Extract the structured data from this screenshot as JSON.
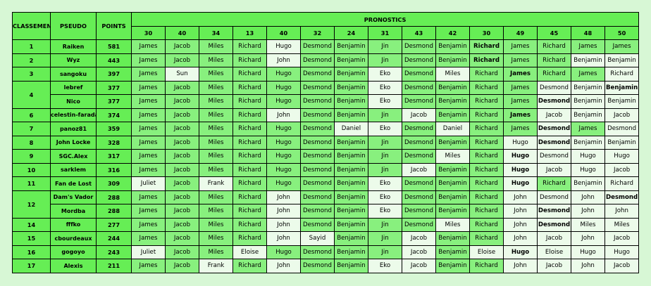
{
  "headers": {
    "rank": "CLASSEMENT",
    "pseudo": "PSEUDO",
    "points": "POINTS",
    "pronostics": "PRONOSTICS"
  },
  "question_numbers": [
    "30",
    "40",
    "34",
    "13",
    "40",
    "32",
    "24",
    "31",
    "43",
    "42",
    "30",
    "49",
    "45",
    "48",
    "50"
  ],
  "rows": [
    {
      "rank": "1",
      "pseudo": "Raiken",
      "points": "581",
      "picks": [
        {
          "v": "James",
          "c": 0
        },
        {
          "v": "Jacob",
          "c": 0
        },
        {
          "v": "Miles",
          "c": 0
        },
        {
          "v": "Richard",
          "c": 0
        },
        {
          "v": "Hugo",
          "c": 1
        },
        {
          "v": "Desmond",
          "c": 0
        },
        {
          "v": "Benjamin",
          "c": 0
        },
        {
          "v": "Jin",
          "c": 0
        },
        {
          "v": "Desmond",
          "c": 0
        },
        {
          "v": "Benjamin",
          "c": 0
        },
        {
          "v": "Richard",
          "c": 0,
          "b": true
        },
        {
          "v": "James",
          "c": 0
        },
        {
          "v": "Richard",
          "c": 0
        },
        {
          "v": "James",
          "c": 0
        },
        {
          "v": "James",
          "c": 0
        }
      ]
    },
    {
      "rank": "2",
      "pseudo": "Wyz",
      "points": "443",
      "picks": [
        {
          "v": "James",
          "c": 0
        },
        {
          "v": "Jacob",
          "c": 0
        },
        {
          "v": "Miles",
          "c": 0
        },
        {
          "v": "Richard",
          "c": 0
        },
        {
          "v": "John",
          "c": 1
        },
        {
          "v": "Desmond",
          "c": 0
        },
        {
          "v": "Benjamin",
          "c": 0
        },
        {
          "v": "Jin",
          "c": 0
        },
        {
          "v": "Desmond",
          "c": 0
        },
        {
          "v": "Benjamin",
          "c": 0
        },
        {
          "v": "Richard",
          "c": 0,
          "b": true
        },
        {
          "v": "James",
          "c": 0
        },
        {
          "v": "Richard",
          "c": 0
        },
        {
          "v": "Benjamin",
          "c": 1
        },
        {
          "v": "Benjamin",
          "c": 1
        }
      ]
    },
    {
      "rank": "3",
      "pseudo": "sangoku",
      "points": "397",
      "picks": [
        {
          "v": "James",
          "c": 0
        },
        {
          "v": "Sun",
          "c": 1
        },
        {
          "v": "Miles",
          "c": 0
        },
        {
          "v": "Richard",
          "c": 0
        },
        {
          "v": "Hugo",
          "c": 0
        },
        {
          "v": "Desmond",
          "c": 0
        },
        {
          "v": "Benjamin",
          "c": 0
        },
        {
          "v": "Eko",
          "c": 1
        },
        {
          "v": "Desmond",
          "c": 0
        },
        {
          "v": "Miles",
          "c": 1
        },
        {
          "v": "Richard",
          "c": 0
        },
        {
          "v": "James",
          "c": 0,
          "b": true
        },
        {
          "v": "Richard",
          "c": 0
        },
        {
          "v": "James",
          "c": 0
        },
        {
          "v": "Richard",
          "c": 1
        }
      ]
    },
    {
      "rank": "4",
      "pseudo": "lebref",
      "points": "377",
      "picks": [
        {
          "v": "James",
          "c": 0
        },
        {
          "v": "Jacob",
          "c": 0
        },
        {
          "v": "Miles",
          "c": 0
        },
        {
          "v": "Richard",
          "c": 0
        },
        {
          "v": "Hugo",
          "c": 0
        },
        {
          "v": "Desmond",
          "c": 0
        },
        {
          "v": "Benjamin",
          "c": 0
        },
        {
          "v": "Eko",
          "c": 1
        },
        {
          "v": "Desmond",
          "c": 0
        },
        {
          "v": "Benjamin",
          "c": 0
        },
        {
          "v": "Richard",
          "c": 0
        },
        {
          "v": "James",
          "c": 0
        },
        {
          "v": "Desmond",
          "c": 1
        },
        {
          "v": "Benjamin",
          "c": 1
        },
        {
          "v": "Benjamin",
          "c": 1,
          "b": true
        }
      ]
    },
    {
      "rank": "",
      "pseudo": "Nico",
      "points": "377",
      "picks": [
        {
          "v": "James",
          "c": 0
        },
        {
          "v": "Jacob",
          "c": 0
        },
        {
          "v": "Miles",
          "c": 0
        },
        {
          "v": "Richard",
          "c": 0
        },
        {
          "v": "Hugo",
          "c": 0
        },
        {
          "v": "Desmond",
          "c": 0
        },
        {
          "v": "Benjamin",
          "c": 0
        },
        {
          "v": "Eko",
          "c": 1
        },
        {
          "v": "Desmond",
          "c": 0
        },
        {
          "v": "Benjamin",
          "c": 0
        },
        {
          "v": "Richard",
          "c": 0
        },
        {
          "v": "James",
          "c": 0
        },
        {
          "v": "Desmond",
          "c": 1,
          "b": true
        },
        {
          "v": "Benjamin",
          "c": 1
        },
        {
          "v": "Benjamin",
          "c": 1
        }
      ]
    },
    {
      "rank": "6",
      "pseudo": "celestin-faraday",
      "points": "374",
      "picks": [
        {
          "v": "James",
          "c": 0
        },
        {
          "v": "Jacob",
          "c": 0
        },
        {
          "v": "Miles",
          "c": 0
        },
        {
          "v": "Richard",
          "c": 0
        },
        {
          "v": "John",
          "c": 1
        },
        {
          "v": "Desmond",
          "c": 0
        },
        {
          "v": "Benjamin",
          "c": 0
        },
        {
          "v": "Jin",
          "c": 0
        },
        {
          "v": "Jacob",
          "c": 1
        },
        {
          "v": "Benjamin",
          "c": 0
        },
        {
          "v": "Richard",
          "c": 0
        },
        {
          "v": "James",
          "c": 0,
          "b": true
        },
        {
          "v": "Jacob",
          "c": 1
        },
        {
          "v": "Benjamin",
          "c": 1
        },
        {
          "v": "Jacob",
          "c": 1
        }
      ]
    },
    {
      "rank": "7",
      "pseudo": "panoz81",
      "points": "359",
      "picks": [
        {
          "v": "James",
          "c": 0
        },
        {
          "v": "Jacob",
          "c": 0
        },
        {
          "v": "Miles",
          "c": 0
        },
        {
          "v": "Richard",
          "c": 0
        },
        {
          "v": "Hugo",
          "c": 0
        },
        {
          "v": "Desmond",
          "c": 0
        },
        {
          "v": "Daniel",
          "c": 1
        },
        {
          "v": "Eko",
          "c": 1
        },
        {
          "v": "Desmond",
          "c": 0
        },
        {
          "v": "Daniel",
          "c": 1
        },
        {
          "v": "Richard",
          "c": 0
        },
        {
          "v": "James",
          "c": 0
        },
        {
          "v": "Desmond",
          "c": 1,
          "b": true
        },
        {
          "v": "James",
          "c": 0
        },
        {
          "v": "Desmond",
          "c": 1
        }
      ]
    },
    {
      "rank": "8",
      "pseudo": "John Locke",
      "points": "328",
      "picks": [
        {
          "v": "James",
          "c": 0
        },
        {
          "v": "Jacob",
          "c": 0
        },
        {
          "v": "Miles",
          "c": 0
        },
        {
          "v": "Richard",
          "c": 0
        },
        {
          "v": "Hugo",
          "c": 0
        },
        {
          "v": "Desmond",
          "c": 0
        },
        {
          "v": "Benjamin",
          "c": 0
        },
        {
          "v": "Jin",
          "c": 0
        },
        {
          "v": "Desmond",
          "c": 0
        },
        {
          "v": "Benjamin",
          "c": 0
        },
        {
          "v": "Richard",
          "c": 0
        },
        {
          "v": "Hugo",
          "c": 1
        },
        {
          "v": "Desmond",
          "c": 1,
          "b": true
        },
        {
          "v": "Benjamin",
          "c": 1
        },
        {
          "v": "Benjamin",
          "c": 1
        }
      ]
    },
    {
      "rank": "9",
      "pseudo": "SGC.Alex",
      "points": "317",
      "picks": [
        {
          "v": "James",
          "c": 0
        },
        {
          "v": "Jacob",
          "c": 0
        },
        {
          "v": "Miles",
          "c": 0
        },
        {
          "v": "Richard",
          "c": 0
        },
        {
          "v": "Hugo",
          "c": 0
        },
        {
          "v": "Desmond",
          "c": 0
        },
        {
          "v": "Benjamin",
          "c": 0
        },
        {
          "v": "Jin",
          "c": 0
        },
        {
          "v": "Desmond",
          "c": 0
        },
        {
          "v": "Miles",
          "c": 1
        },
        {
          "v": "Richard",
          "c": 0
        },
        {
          "v": "Hugo",
          "c": 1,
          "b": true
        },
        {
          "v": "Desmond",
          "c": 1
        },
        {
          "v": "Hugo",
          "c": 1
        },
        {
          "v": "Hugo",
          "c": 1
        }
      ]
    },
    {
      "rank": "10",
      "pseudo": "sarklem",
      "points": "316",
      "picks": [
        {
          "v": "James",
          "c": 0
        },
        {
          "v": "Jacob",
          "c": 0
        },
        {
          "v": "Miles",
          "c": 0
        },
        {
          "v": "Richard",
          "c": 0
        },
        {
          "v": "Hugo",
          "c": 0
        },
        {
          "v": "Desmond",
          "c": 0
        },
        {
          "v": "Benjamin",
          "c": 0
        },
        {
          "v": "Jin",
          "c": 0
        },
        {
          "v": "Jacob",
          "c": 1
        },
        {
          "v": "Benjamin",
          "c": 0
        },
        {
          "v": "Richard",
          "c": 0
        },
        {
          "v": "Hugo",
          "c": 1,
          "b": true
        },
        {
          "v": "Jacob",
          "c": 1
        },
        {
          "v": "Hugo",
          "c": 1
        },
        {
          "v": "Jacob",
          "c": 1
        }
      ]
    },
    {
      "rank": "11",
      "pseudo": "Fan de Lost",
      "points": "309",
      "picks": [
        {
          "v": "Juliet",
          "c": 1
        },
        {
          "v": "Jacob",
          "c": 0
        },
        {
          "v": "Frank",
          "c": 1
        },
        {
          "v": "Richard",
          "c": 0
        },
        {
          "v": "Hugo",
          "c": 0
        },
        {
          "v": "Desmond",
          "c": 0
        },
        {
          "v": "Benjamin",
          "c": 0
        },
        {
          "v": "Eko",
          "c": 1
        },
        {
          "v": "Desmond",
          "c": 0
        },
        {
          "v": "Benjamin",
          "c": 0
        },
        {
          "v": "Richard",
          "c": 0
        },
        {
          "v": "Hugo",
          "c": 1,
          "b": true
        },
        {
          "v": "Richard",
          "c": 0
        },
        {
          "v": "Benjamin",
          "c": 1
        },
        {
          "v": "Richard",
          "c": 1
        }
      ]
    },
    {
      "rank": "12",
      "pseudo": "Dam's Vador",
      "points": "288",
      "picks": [
        {
          "v": "James",
          "c": 0
        },
        {
          "v": "Jacob",
          "c": 0
        },
        {
          "v": "Miles",
          "c": 0
        },
        {
          "v": "Richard",
          "c": 0
        },
        {
          "v": "John",
          "c": 1
        },
        {
          "v": "Desmond",
          "c": 0
        },
        {
          "v": "Benjamin",
          "c": 0
        },
        {
          "v": "Eko",
          "c": 1
        },
        {
          "v": "Desmond",
          "c": 0
        },
        {
          "v": "Benjamin",
          "c": 0
        },
        {
          "v": "Richard",
          "c": 0
        },
        {
          "v": "John",
          "c": 1
        },
        {
          "v": "Desmond",
          "c": 1
        },
        {
          "v": "John",
          "c": 1
        },
        {
          "v": "Desmond",
          "c": 1,
          "b": true
        }
      ]
    },
    {
      "rank": "",
      "pseudo": "Mordba",
      "points": "288",
      "picks": [
        {
          "v": "James",
          "c": 0
        },
        {
          "v": "Jacob",
          "c": 0
        },
        {
          "v": "Miles",
          "c": 0
        },
        {
          "v": "Richard",
          "c": 0
        },
        {
          "v": "John",
          "c": 1
        },
        {
          "v": "Desmond",
          "c": 0
        },
        {
          "v": "Benjamin",
          "c": 0
        },
        {
          "v": "Eko",
          "c": 1
        },
        {
          "v": "Desmond",
          "c": 0
        },
        {
          "v": "Benjamin",
          "c": 0
        },
        {
          "v": "Richard",
          "c": 0
        },
        {
          "v": "John",
          "c": 1
        },
        {
          "v": "Desmond",
          "c": 1,
          "b": true
        },
        {
          "v": "John",
          "c": 1
        },
        {
          "v": "John",
          "c": 1
        }
      ]
    },
    {
      "rank": "14",
      "pseudo": "fffko",
      "points": "277",
      "picks": [
        {
          "v": "James",
          "c": 0
        },
        {
          "v": "Jacob",
          "c": 0
        },
        {
          "v": "Miles",
          "c": 0
        },
        {
          "v": "Richard",
          "c": 0
        },
        {
          "v": "John",
          "c": 1
        },
        {
          "v": "Desmond",
          "c": 0
        },
        {
          "v": "Benjamin",
          "c": 0
        },
        {
          "v": "Jin",
          "c": 0
        },
        {
          "v": "Desmond",
          "c": 0
        },
        {
          "v": "Miles",
          "c": 1
        },
        {
          "v": "Richard",
          "c": 0
        },
        {
          "v": "John",
          "c": 1
        },
        {
          "v": "Desmond",
          "c": 1,
          "b": true
        },
        {
          "v": "Miles",
          "c": 1
        },
        {
          "v": "Miles",
          "c": 1
        }
      ]
    },
    {
      "rank": "15",
      "pseudo": "cbourdeaux",
      "points": "244",
      "picks": [
        {
          "v": "James",
          "c": 0
        },
        {
          "v": "Jacob",
          "c": 0
        },
        {
          "v": "Miles",
          "c": 0
        },
        {
          "v": "Richard",
          "c": 0
        },
        {
          "v": "John",
          "c": 1
        },
        {
          "v": "Sayid",
          "c": 1
        },
        {
          "v": "Benjamin",
          "c": 0
        },
        {
          "v": "Jin",
          "c": 0
        },
        {
          "v": "Jacob",
          "c": 1
        },
        {
          "v": "Benjamin",
          "c": 0
        },
        {
          "v": "Richard",
          "c": 0
        },
        {
          "v": "John",
          "c": 1
        },
        {
          "v": "Jacob",
          "c": 1
        },
        {
          "v": "John",
          "c": 1
        },
        {
          "v": "Jacob",
          "c": 1
        }
      ]
    },
    {
      "rank": "16",
      "pseudo": "gogoyo",
      "points": "243",
      "picks": [
        {
          "v": "Juliet",
          "c": 1
        },
        {
          "v": "Jacob",
          "c": 0
        },
        {
          "v": "Miles",
          "c": 0
        },
        {
          "v": "Eloise",
          "c": 1
        },
        {
          "v": "Hugo",
          "c": 0
        },
        {
          "v": "Desmond",
          "c": 0
        },
        {
          "v": "Benjamin",
          "c": 0
        },
        {
          "v": "Jin",
          "c": 0
        },
        {
          "v": "Jacob",
          "c": 1
        },
        {
          "v": "Benjamin",
          "c": 0
        },
        {
          "v": "Eloise",
          "c": 1
        },
        {
          "v": "Hugo",
          "c": 1,
          "b": true
        },
        {
          "v": "Eloise",
          "c": 1
        },
        {
          "v": "Hugo",
          "c": 1
        },
        {
          "v": "Hugo",
          "c": 1
        }
      ]
    },
    {
      "rank": "17",
      "pseudo": "Alexis",
      "points": "211",
      "picks": [
        {
          "v": "James",
          "c": 0
        },
        {
          "v": "Jacob",
          "c": 0
        },
        {
          "v": "Frank",
          "c": 1
        },
        {
          "v": "Richard",
          "c": 0
        },
        {
          "v": "John",
          "c": 1
        },
        {
          "v": "Desmond",
          "c": 0
        },
        {
          "v": "Benjamin",
          "c": 0
        },
        {
          "v": "Eko",
          "c": 1
        },
        {
          "v": "Jacob",
          "c": 1
        },
        {
          "v": "Benjamin",
          "c": 0
        },
        {
          "v": "Richard",
          "c": 0
        },
        {
          "v": "John",
          "c": 1
        },
        {
          "v": "Jacob",
          "c": 1
        },
        {
          "v": "John",
          "c": 1
        },
        {
          "v": "Jacob",
          "c": 1
        }
      ]
    }
  ],
  "colors": {
    "header": "#66ee55",
    "pick_match": "#88f07e",
    "pick_other": "#ecfbea",
    "background": "#d7f7d5"
  }
}
